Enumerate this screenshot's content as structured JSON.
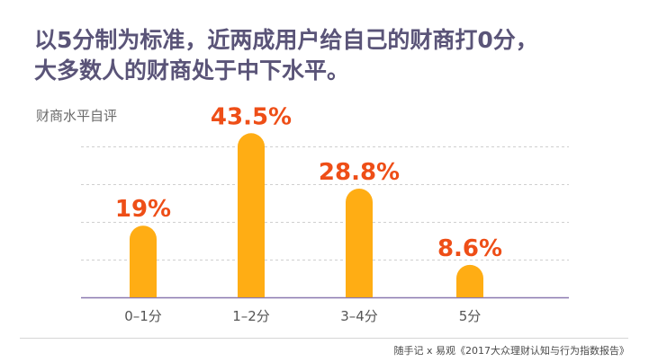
{
  "headline": {
    "line1": "以5分制为标准，近两成用户给自己的财商打0分，",
    "line2": "大多数人的财商处于中下水平。"
  },
  "colors": {
    "bar": "#ffad14",
    "value_label": "#ee4e17",
    "headline": "#5a5478",
    "grid": "#cfcfcf",
    "baseline": "#8a78b0"
  },
  "chart_data": {
    "type": "bar",
    "title": "财商水平自评",
    "xlabel": "",
    "ylabel": "",
    "ylim": [
      0,
      50
    ],
    "grid": true,
    "categories": [
      "0–1分",
      "1–2分",
      "3–4分",
      "5分"
    ],
    "values": [
      19,
      43.5,
      28.8,
      8.6
    ],
    "value_labels": [
      "19%",
      "43.5%",
      "28.8%",
      "8.6%"
    ]
  },
  "source": "随手记 x 易观《2017大众理财认知与行为指数报告》"
}
